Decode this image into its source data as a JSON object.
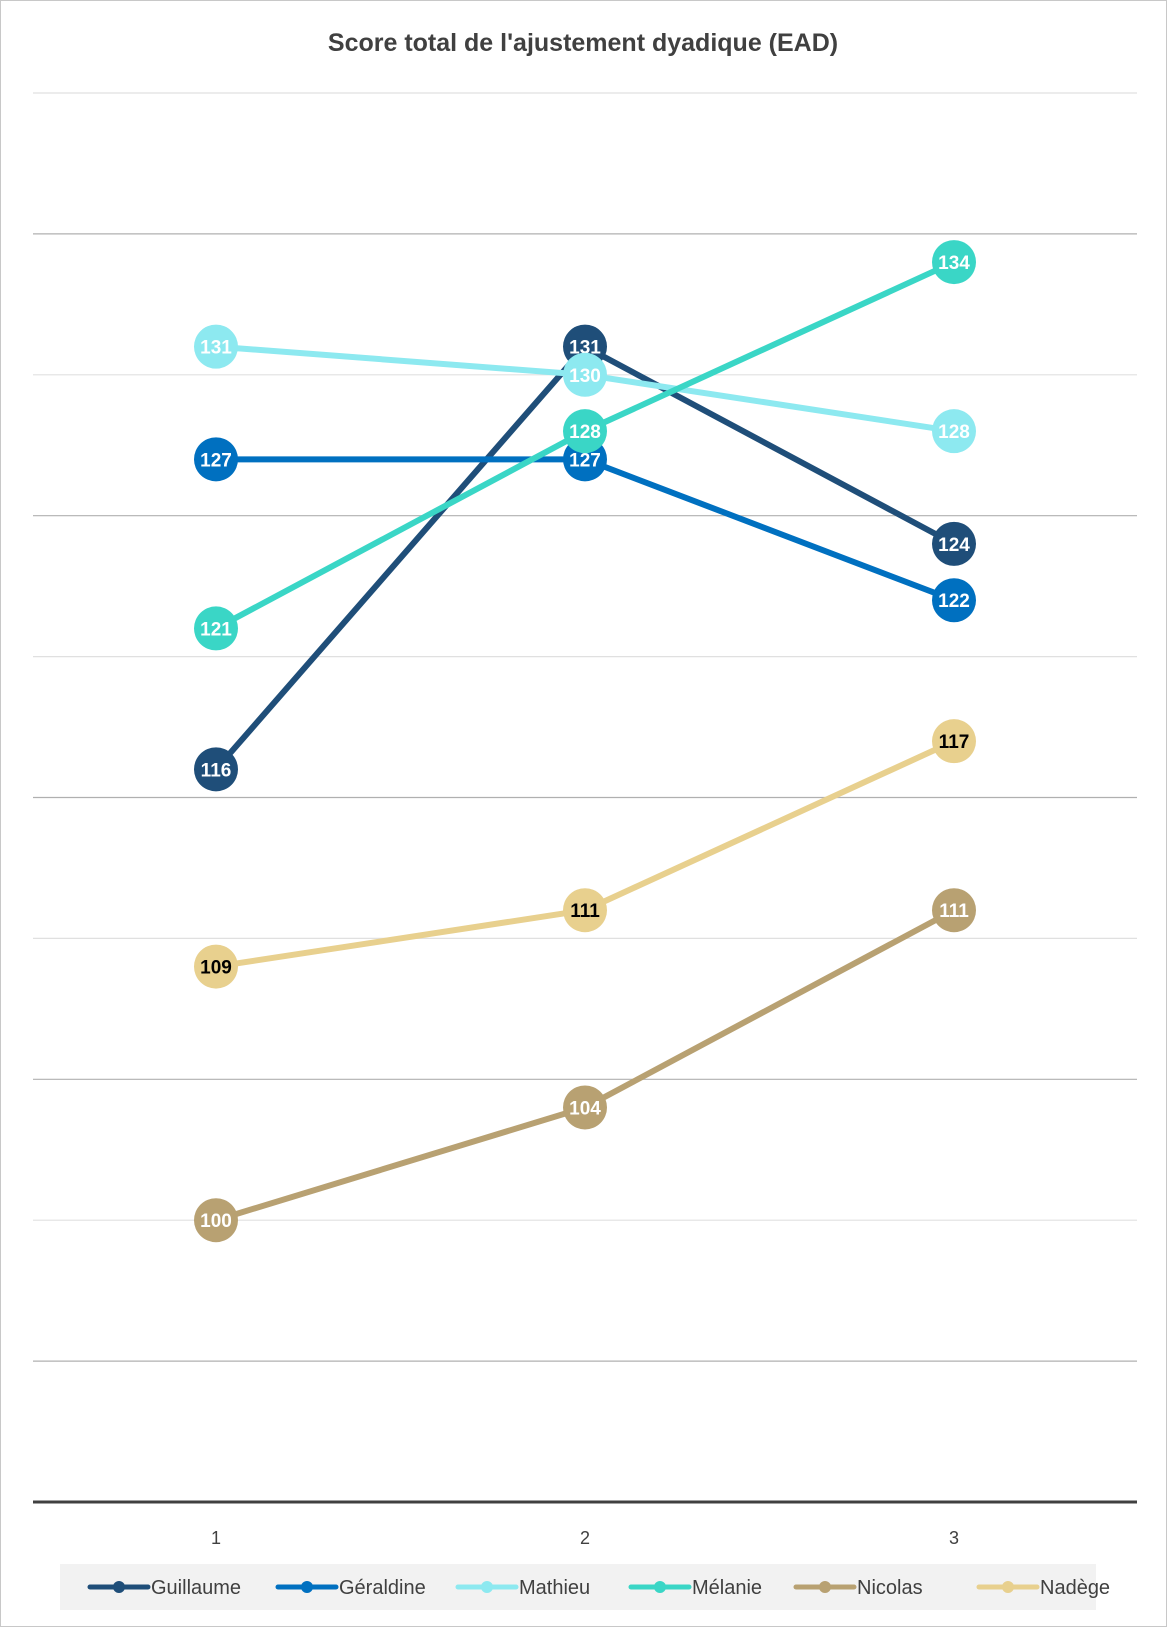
{
  "chart_data": {
    "type": "line",
    "title": "Score total de l'ajustement dyadique (EAD)",
    "xlabel": "",
    "ylabel": "",
    "categories": [
      "1",
      "2",
      "3"
    ],
    "ylim": [
      90,
      140
    ],
    "gridlines": true,
    "legend": "bottom",
    "series": [
      {
        "name": "Guillaume",
        "values": [
          116,
          131,
          124
        ],
        "color": "#1F4E79",
        "label_color": "#FFFFFF"
      },
      {
        "name": "Géraldine",
        "values": [
          127,
          127,
          122
        ],
        "color": "#0070C0",
        "label_color": "#FFFFFF"
      },
      {
        "name": "Mathieu",
        "values": [
          131,
          130,
          128
        ],
        "color": "#8DE9F0",
        "label_color": "#FFFFFF"
      },
      {
        "name": "Mélanie",
        "values": [
          121,
          128,
          134
        ],
        "color": "#3AD6C6",
        "label_color": "#FFFFFF"
      },
      {
        "name": "Nicolas",
        "values": [
          100,
          104,
          111
        ],
        "color": "#B8A172",
        "label_color": "#FFFFFF"
      },
      {
        "name": "Nadège",
        "values": [
          109,
          111,
          117
        ],
        "color": "#E8D08E",
        "label_color": "#000000"
      }
    ]
  }
}
